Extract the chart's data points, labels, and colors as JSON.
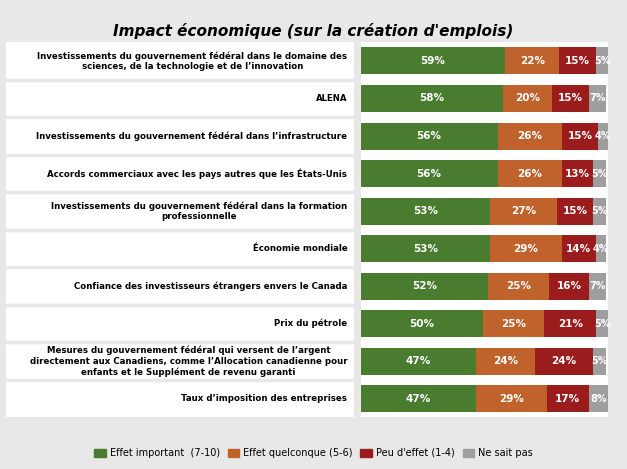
{
  "title": "Impact économique (sur la création d'emplois)",
  "categories": [
    "Investissements du gouvernement fédéral dans le domaine des\nsciences, de la technologie et de l’innovation",
    "ALENA",
    "Investissements du gouvernement fédéral dans l’infrastructure",
    "Accords commerciaux avec les pays autres que les États-Unis",
    "Investissements du gouvernement fédéral dans la formation\nprofessionnelle",
    "Économie mondiale",
    "Confiance des investisseurs étrangers envers le Canada",
    "Prix du pétrole",
    "Mesures du gouvernement fédéral qui versent de l’argent\ndirectement aux Canadiens, comme l’Allocation canadienne pour\nenfants et le Supplément de revenu garanti",
    "Taux d’imposition des entreprises"
  ],
  "effet_important": [
    59,
    58,
    56,
    56,
    53,
    53,
    52,
    50,
    47,
    47
  ],
  "effet_quelconque": [
    22,
    20,
    26,
    26,
    27,
    29,
    25,
    25,
    24,
    29
  ],
  "peu_effet": [
    15,
    15,
    15,
    13,
    15,
    14,
    16,
    21,
    24,
    17
  ],
  "ne_sait_pas": [
    5,
    7,
    4,
    5,
    5,
    4,
    7,
    5,
    5,
    8
  ],
  "color_important": "#4a7c2f",
  "color_quelconque": "#c0622b",
  "color_peu": "#9b1c1c",
  "color_nsp": "#9e9e9e",
  "legend_labels": [
    "Effet important  (7-10)",
    "Effet quelconque (5-6)",
    "Peu d'effet (1-4)",
    "Ne sait pas"
  ],
  "background_color": "#e8e8e8",
  "label_area_color": "#ffffff",
  "bar_background": "#ffffff"
}
